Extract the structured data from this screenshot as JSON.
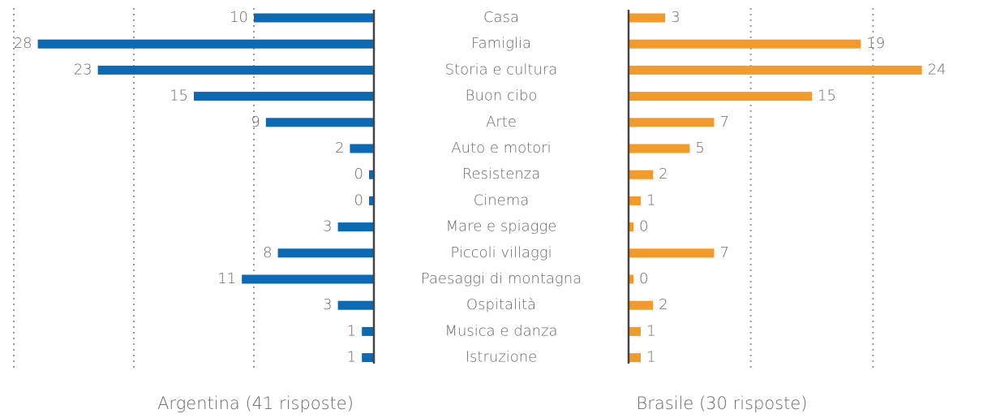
{
  "chart_data": [
    {
      "type": "bar",
      "orientation": "horizontal",
      "reversed": true,
      "x_label": "Argentina (41 risposte)",
      "categories": [
        "Casa",
        "Famiglia",
        "Storia e cultura",
        "Buon cibo",
        "Arte",
        "Auto e motori",
        "Resistenza",
        "Cinema",
        "Mare e spiagge",
        "Piccoli villaggi",
        "Paesaggi di montagna",
        "Ospitalità",
        "Musica e danza",
        "Istruzione"
      ],
      "values": [
        10,
        28,
        23,
        15,
        9,
        2,
        0,
        0,
        3,
        8,
        11,
        3,
        1,
        1
      ],
      "color": "#0a6ab4",
      "xlim": [
        0,
        30
      ],
      "xticks": [
        10,
        20,
        30
      ],
      "grid": true
    },
    {
      "type": "bar",
      "orientation": "horizontal",
      "reversed": false,
      "x_label": "Brasile (30 risposte)",
      "values": [
        3,
        19,
        24,
        15,
        7,
        5,
        2,
        1,
        0,
        7,
        0,
        2,
        1,
        1
      ],
      "color": "#f39a2a",
      "xlim": [
        0,
        29
      ],
      "xticks": [
        10,
        20
      ],
      "grid": true
    }
  ]
}
